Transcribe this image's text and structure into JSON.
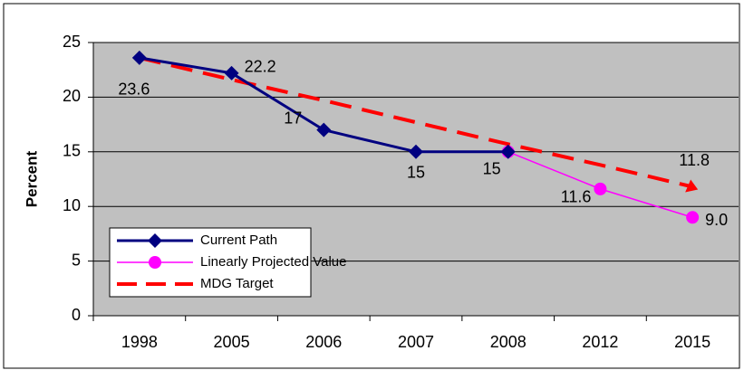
{
  "chart_data": {
    "type": "line",
    "y_label": "Percent",
    "categories": [
      "1998",
      "2005",
      "2006",
      "2007",
      "2008",
      "2012",
      "2015"
    ],
    "ylim": [
      0,
      25
    ],
    "yticks": [
      0,
      5,
      10,
      15,
      20,
      25
    ],
    "grid": true,
    "series": [
      {
        "name": "Current Path",
        "color": "#000080",
        "marker": "diamond",
        "values": [
          23.6,
          22.2,
          17,
          15,
          15,
          null,
          null
        ],
        "value_labels": [
          "23.6",
          "22.2",
          "17",
          "15",
          "15",
          null,
          null
        ]
      },
      {
        "name": "Linearly Projected Value",
        "color": "#ff00ff",
        "marker": "circle",
        "values": [
          null,
          null,
          null,
          null,
          15,
          11.6,
          9.0
        ],
        "value_labels": [
          null,
          null,
          null,
          null,
          null,
          "11.6",
          "9.0"
        ]
      },
      {
        "name": "MDG Target",
        "color": "#ff0000",
        "marker": "none",
        "dashed": true,
        "values": [
          23.6,
          21.6,
          19.7,
          17.7,
          15.7,
          13.8,
          11.8
        ],
        "value_labels": [
          null,
          null,
          null,
          null,
          null,
          null,
          "11.8"
        ]
      }
    ]
  }
}
